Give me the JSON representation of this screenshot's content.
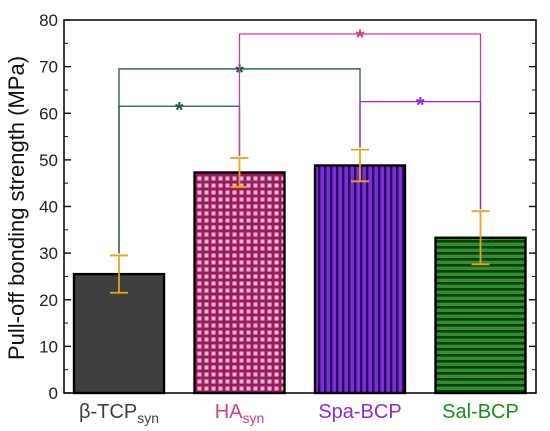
{
  "chart_data": {
    "type": "bar",
    "title": "",
    "xlabel": "",
    "ylabel": "Pull-off bonding strength (MPa)",
    "ylim": [
      0,
      80
    ],
    "yticks": [
      0,
      10,
      20,
      30,
      40,
      50,
      60,
      70,
      80
    ],
    "grid": false,
    "categories": [
      {
        "base": "β-TCP",
        "sub": "syn",
        "color": "#404040",
        "fill": "#3f3f3f",
        "pattern": "solid"
      },
      {
        "base": "HA",
        "sub": "syn",
        "color": "#d63a8e",
        "fill": "#9b1a5a",
        "pattern": "grid"
      },
      {
        "base": "Spa-BCP",
        "sub": "",
        "color": "#8a2be2",
        "fill": "#7b2ee0",
        "pattern": "vertical"
      },
      {
        "base": "Sal-BCP",
        "sub": "",
        "color": "#1e8c1e",
        "fill": "#1b6e1b",
        "pattern": "horizontal"
      }
    ],
    "values": [
      25.5,
      47.3,
      48.8,
      33.3
    ],
    "errors": [
      {
        "low": 21.5,
        "high": 29.5
      },
      {
        "low": 44.2,
        "high": 50.4
      },
      {
        "low": 45.4,
        "high": 52.2
      },
      {
        "low": 27.6,
        "high": 39.0
      }
    ],
    "error_bar_color": "#e8a317",
    "significance": [
      {
        "from": 0,
        "to": 1,
        "level": 61.5,
        "mark": "*",
        "color": "#1f5a4a"
      },
      {
        "from": 0,
        "to": 2,
        "level": 69.5,
        "mark": "*",
        "color": "#1f5a4a"
      },
      {
        "from": 1,
        "to": 3,
        "level": 77,
        "mark": "*",
        "color": "#d63a8e"
      },
      {
        "from": 2,
        "to": 3,
        "level": 62.5,
        "mark": "*",
        "color": "#8a2be2"
      }
    ]
  }
}
